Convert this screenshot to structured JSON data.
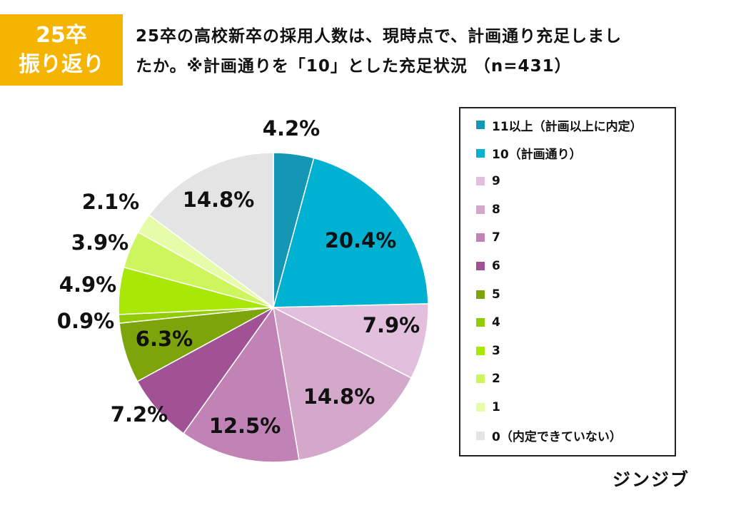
{
  "badge": {
    "line1": "25卒",
    "line2": "振り返り"
  },
  "title": {
    "line1": "25卒の高校新卒の採用人数は、現時点で、計画通り充足しまし",
    "line2": "たか。※計画通りを「10」とした充足状況 （n=431）"
  },
  "brand": "ジンジブ",
  "chart_data": {
    "type": "pie",
    "start": "12 o'clock, clockwise",
    "legend_position": "right",
    "slices": [
      {
        "label": "11以上（計画以上に内定）",
        "value": 4.2,
        "display": "4.2%",
        "color": "#1497b5"
      },
      {
        "label": "10（計画通り）",
        "value": 20.4,
        "display": "20.4%",
        "color": "#00b1d1"
      },
      {
        "label": "9",
        "value": 7.9,
        "display": "7.9%",
        "color": "#e2bfdc"
      },
      {
        "label": "8",
        "value": 14.8,
        "display": "14.8%",
        "color": "#d3a8cb"
      },
      {
        "label": "7",
        "value": 12.5,
        "display": "12.5%",
        "color": "#c183b6"
      },
      {
        "label": "6",
        "value": 7.2,
        "display": "7.2%",
        "color": "#a05295"
      },
      {
        "label": "5",
        "value": 6.3,
        "display": "6.3%",
        "color": "#7da40b"
      },
      {
        "label": "4",
        "value": 0.9,
        "display": "0.9%",
        "color": "#92cc07"
      },
      {
        "label": "3",
        "value": 4.9,
        "display": "4.9%",
        "color": "#a9e806"
      },
      {
        "label": "2",
        "value": 3.9,
        "display": "3.9%",
        "color": "#ccf55e"
      },
      {
        "label": "1",
        "value": 2.1,
        "display": "2.1%",
        "color": "#e6fca8"
      },
      {
        "label": "0（内定できていない）",
        "value": 14.8,
        "display": "14.8%",
        "color": "#e4e4e4"
      }
    ]
  }
}
